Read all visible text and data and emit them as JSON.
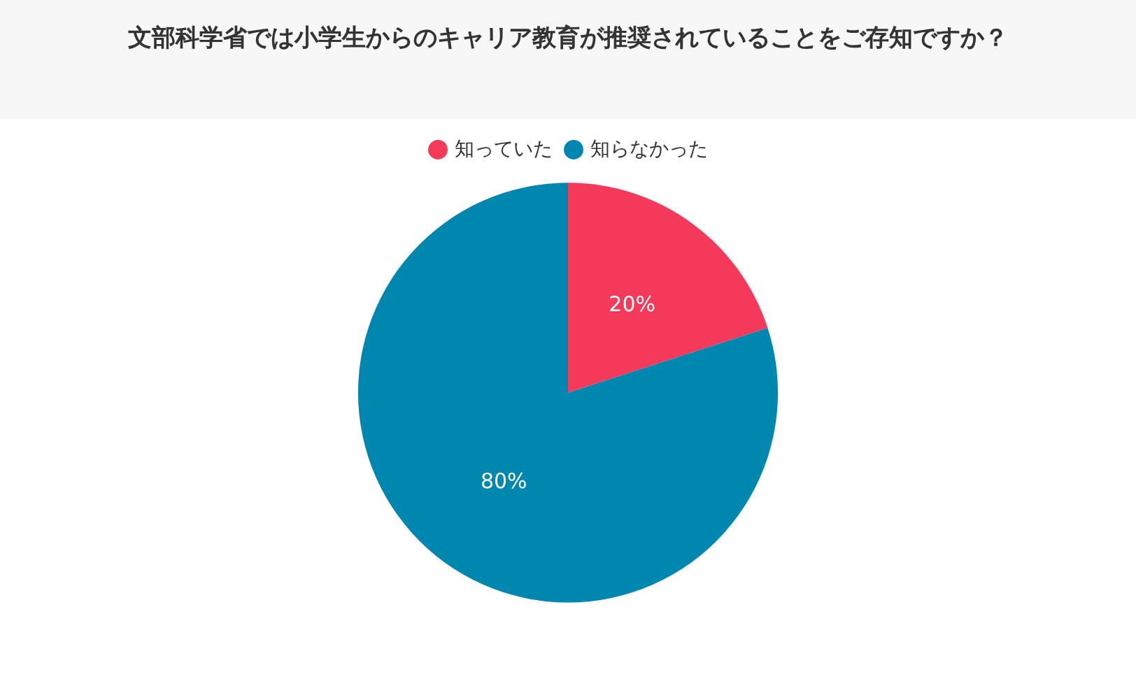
{
  "chart_data": {
    "type": "pie",
    "title": "文部科学省では小学生からのキャリア教育が推奨されていることをご存知ですか？",
    "categories": [
      "知っていた",
      "知らなかった"
    ],
    "values": [
      20,
      80
    ],
    "colors": [
      "#f5395a",
      "#0087b0"
    ],
    "value_labels": [
      "20%",
      "80%"
    ],
    "legend": "top"
  }
}
